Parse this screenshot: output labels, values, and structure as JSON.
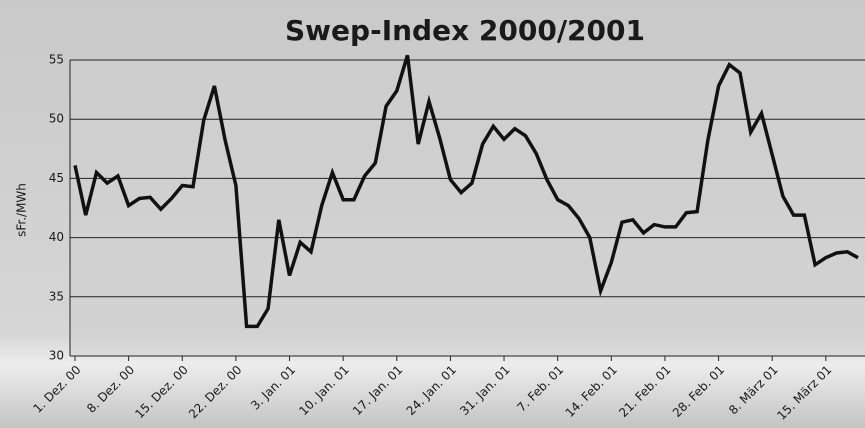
{
  "chart_data": {
    "type": "line",
    "title": "Swep-Index 2000/2001",
    "y_label": "sFr./MWh",
    "categories": [
      "1. Dez. 00",
      null,
      null,
      null,
      null,
      "8. Dez. 00",
      null,
      null,
      null,
      null,
      "15. Dez. 00",
      null,
      null,
      null,
      null,
      "22. Dez. 00",
      null,
      null,
      null,
      null,
      "3. Jan. 01",
      null,
      null,
      null,
      null,
      "10. Jan. 01",
      null,
      null,
      null,
      null,
      "17. Jan. 01",
      null,
      null,
      null,
      null,
      "24. Jan. 01",
      null,
      null,
      null,
      null,
      "31. Jan. 01",
      null,
      null,
      null,
      null,
      "7. Feb. 01",
      null,
      null,
      null,
      null,
      "14. Feb. 01",
      null,
      null,
      null,
      null,
      "21. Feb. 01",
      null,
      null,
      null,
      null,
      "28. Feb. 01",
      null,
      null,
      null,
      null,
      "8. März 01",
      null,
      null,
      null,
      null,
      "15. März 01",
      null,
      null,
      null
    ],
    "values": [
      46.1,
      41.9,
      45.5,
      44.6,
      45.2,
      42.7,
      43.3,
      43.4,
      42.4,
      43.3,
      44.4,
      44.3,
      49.9,
      52.8,
      48.2,
      44.4,
      32.5,
      32.5,
      34.0,
      41.5,
      36.8,
      39.6,
      38.8,
      42.7,
      45.5,
      43.2,
      43.2,
      45.2,
      46.3,
      51.1,
      52.4,
      55.4,
      47.9,
      51.5,
      48.4,
      44.9,
      43.8,
      44.6,
      47.9,
      49.4,
      48.3,
      49.2,
      48.6,
      47.1,
      44.9,
      43.2,
      42.7,
      41.6,
      40.0,
      35.5,
      37.9,
      41.3,
      41.5,
      40.4,
      41.1,
      40.9,
      40.9,
      42.1,
      42.2,
      48.2,
      52.8,
      54.6,
      53.9,
      48.9,
      50.5,
      47.0,
      43.5,
      41.9,
      41.9,
      37.7,
      38.3,
      38.7,
      38.8,
      38.3
    ],
    "color": "#111111",
    "ylim": [
      30,
      55
    ],
    "yticks": [
      30,
      35,
      40,
      45,
      50,
      55
    ],
    "grid": true
  }
}
